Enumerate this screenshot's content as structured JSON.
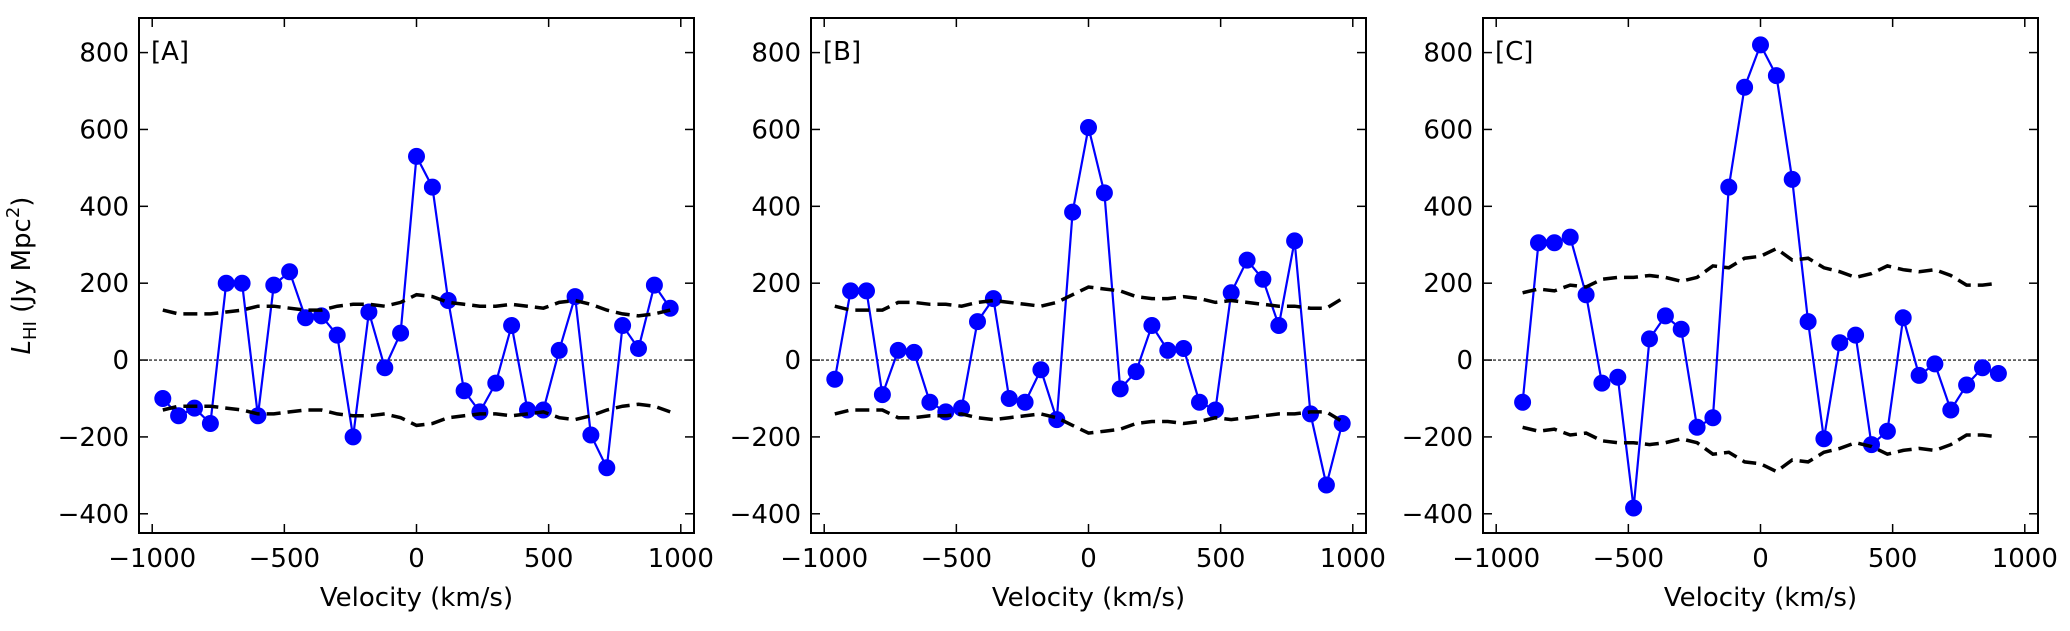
{
  "chart_data": [
    {
      "type": "line",
      "panel_label": "[A]",
      "xlabel": "Velocity (km/s)",
      "ylabel": "L_HI (Jy Mpc^2)",
      "ylabel_parts": {
        "base": "L",
        "sub": "HI",
        "unit": "(Jy Mpc",
        "sup": "2",
        "end": ")"
      },
      "xlim": [
        -1050,
        1050
      ],
      "ylim": [
        -450,
        890
      ],
      "xticks": [
        -1000,
        -500,
        0,
        500,
        1000
      ],
      "xtick_labels": [
        "−1000",
        "−500",
        "0",
        "500",
        "1000"
      ],
      "yticks": [
        -400,
        -200,
        0,
        200,
        400,
        600,
        800
      ],
      "ytick_labels": [
        "−400",
        "−200",
        "0",
        "200",
        "400",
        "600",
        "800"
      ],
      "series": [
        {
          "name": "stacked spectrum",
          "x": [
            -960,
            -900,
            -840,
            -780,
            -720,
            -660,
            -600,
            -540,
            -480,
            -420,
            -360,
            -300,
            -240,
            -180,
            -120,
            -60,
            0,
            60,
            120,
            180,
            240,
            300,
            360,
            420,
            480,
            540,
            600,
            660,
            720,
            780,
            840,
            900,
            960
          ],
          "y": [
            -100,
            -145,
            -125,
            -165,
            200,
            200,
            -145,
            195,
            230,
            110,
            115,
            65,
            -200,
            125,
            -20,
            70,
            530,
            450,
            155,
            -80,
            -135,
            -60,
            90,
            -130,
            -130,
            25,
            165,
            -195,
            -280,
            90,
            30,
            195,
            135
          ]
        },
        {
          "name": "noise upper",
          "x": [
            -960,
            -900,
            -840,
            -780,
            -720,
            -660,
            -600,
            -540,
            -480,
            -420,
            -360,
            -300,
            -240,
            -180,
            -120,
            -60,
            0,
            60,
            120,
            180,
            240,
            300,
            360,
            420,
            480,
            540,
            600,
            660,
            720,
            780,
            840,
            900,
            960
          ],
          "y": [
            130,
            120,
            120,
            120,
            125,
            130,
            140,
            140,
            135,
            130,
            130,
            140,
            145,
            145,
            140,
            150,
            170,
            165,
            150,
            145,
            140,
            140,
            145,
            140,
            135,
            150,
            155,
            145,
            130,
            120,
            115,
            120,
            130
          ]
        },
        {
          "name": "noise lower",
          "x": [
            -960,
            -900,
            -840,
            -780,
            -720,
            -660,
            -600,
            -540,
            -480,
            -420,
            -360,
            -300,
            -240,
            -180,
            -120,
            -60,
            0,
            60,
            120,
            180,
            240,
            300,
            360,
            420,
            480,
            540,
            600,
            660,
            720,
            780,
            840,
            900,
            960
          ],
          "y": [
            -130,
            -120,
            -120,
            -120,
            -125,
            -130,
            -140,
            -140,
            -135,
            -130,
            -130,
            -140,
            -145,
            -145,
            -140,
            -150,
            -170,
            -165,
            -150,
            -145,
            -140,
            -140,
            -145,
            -140,
            -135,
            -150,
            -155,
            -145,
            -130,
            -120,
            -115,
            -120,
            -135
          ]
        }
      ]
    },
    {
      "type": "line",
      "panel_label": "[B]",
      "xlabel": "Velocity (km/s)",
      "ylabel": "",
      "xlim": [
        -1050,
        1050
      ],
      "ylim": [
        -450,
        890
      ],
      "xticks": [
        -1000,
        -500,
        0,
        500,
        1000
      ],
      "xtick_labels": [
        "−1000",
        "−500",
        "0",
        "500",
        "1000"
      ],
      "yticks": [
        -400,
        -200,
        0,
        200,
        400,
        600,
        800
      ],
      "ytick_labels": [
        "−400",
        "−200",
        "0",
        "200",
        "400",
        "600",
        "800"
      ],
      "series": [
        {
          "name": "stacked spectrum",
          "x": [
            -960,
            -900,
            -840,
            -780,
            -720,
            -660,
            -600,
            -540,
            -480,
            -420,
            -360,
            -300,
            -240,
            -180,
            -120,
            -60,
            0,
            60,
            120,
            180,
            240,
            300,
            360,
            420,
            480,
            540,
            600,
            660,
            720,
            780,
            840,
            900,
            960
          ],
          "y": [
            -50,
            180,
            180,
            -90,
            25,
            20,
            -110,
            -135,
            -125,
            100,
            160,
            -100,
            -110,
            -25,
            -155,
            385,
            605,
            435,
            -75,
            -30,
            90,
            25,
            30,
            -110,
            -130,
            175,
            260,
            210,
            90,
            310,
            -140,
            -325,
            -165
          ]
        },
        {
          "name": "noise upper",
          "x": [
            -960,
            -900,
            -840,
            -780,
            -720,
            -660,
            -600,
            -540,
            -480,
            -420,
            -360,
            -300,
            -240,
            -180,
            -120,
            -60,
            0,
            60,
            120,
            180,
            240,
            300,
            360,
            420,
            480,
            540,
            600,
            660,
            720,
            780,
            840,
            900,
            960
          ],
          "y": [
            140,
            130,
            130,
            130,
            150,
            150,
            145,
            145,
            140,
            150,
            155,
            150,
            145,
            140,
            150,
            170,
            190,
            185,
            180,
            165,
            160,
            160,
            165,
            160,
            150,
            155,
            150,
            145,
            140,
            140,
            135,
            135,
            160
          ]
        },
        {
          "name": "noise lower",
          "x": [
            -960,
            -900,
            -840,
            -780,
            -720,
            -660,
            -600,
            -540,
            -480,
            -420,
            -360,
            -300,
            -240,
            -180,
            -120,
            -60,
            0,
            60,
            120,
            180,
            240,
            300,
            360,
            420,
            480,
            540,
            600,
            660,
            720,
            780,
            840,
            900,
            960
          ],
          "y": [
            -140,
            -130,
            -130,
            -130,
            -150,
            -150,
            -145,
            -145,
            -140,
            -150,
            -155,
            -150,
            -145,
            -140,
            -150,
            -170,
            -190,
            -185,
            -180,
            -165,
            -160,
            -160,
            -165,
            -160,
            -150,
            -155,
            -150,
            -145,
            -140,
            -140,
            -135,
            -135,
            -160
          ]
        }
      ]
    },
    {
      "type": "line",
      "panel_label": "[C]",
      "xlabel": "Velocity (km/s)",
      "ylabel": "",
      "xlim": [
        -1050,
        1050
      ],
      "ylim": [
        -450,
        890
      ],
      "xticks": [
        -1000,
        -500,
        0,
        500,
        1000
      ],
      "xtick_labels": [
        "−1000",
        "−500",
        "0",
        "500",
        "1000"
      ],
      "yticks": [
        -400,
        -200,
        0,
        200,
        400,
        600,
        800
      ],
      "ytick_labels": [
        "−400",
        "−200",
        "0",
        "200",
        "400",
        "600",
        "800"
      ],
      "series": [
        {
          "name": "stacked spectrum",
          "x": [
            -900,
            -840,
            -780,
            -720,
            -660,
            -600,
            -540,
            -480,
            -420,
            -360,
            -300,
            -240,
            -180,
            -120,
            -60,
            0,
            60,
            120,
            180,
            240,
            300,
            360,
            420,
            480,
            540,
            600,
            660,
            720,
            780,
            840,
            900
          ],
          "y": [
            -110,
            305,
            305,
            320,
            170,
            -60,
            -45,
            -385,
            55,
            115,
            80,
            -175,
            -150,
            450,
            710,
            820,
            740,
            470,
            100,
            -205,
            45,
            65,
            -220,
            -185,
            110,
            -40,
            -10,
            -130,
            -65,
            -20,
            -35
          ]
        },
        {
          "name": "noise upper",
          "x": [
            -900,
            -840,
            -780,
            -720,
            -660,
            -600,
            -540,
            -480,
            -420,
            -360,
            -300,
            -240,
            -180,
            -120,
            -60,
            0,
            60,
            120,
            180,
            240,
            300,
            360,
            420,
            480,
            540,
            600,
            660,
            720,
            780,
            840,
            900
          ],
          "y": [
            175,
            185,
            180,
            195,
            190,
            210,
            215,
            215,
            220,
            215,
            205,
            215,
            245,
            240,
            265,
            270,
            290,
            260,
            265,
            240,
            230,
            215,
            225,
            245,
            235,
            230,
            235,
            220,
            195,
            195,
            200
          ]
        },
        {
          "name": "noise lower",
          "x": [
            -900,
            -840,
            -780,
            -720,
            -660,
            -600,
            -540,
            -480,
            -420,
            -360,
            -300,
            -240,
            -180,
            -120,
            -60,
            0,
            60,
            120,
            180,
            240,
            300,
            360,
            420,
            480,
            540,
            600,
            660,
            720,
            780,
            840,
            900
          ],
          "y": [
            -175,
            -185,
            -180,
            -195,
            -190,
            -210,
            -215,
            -215,
            -220,
            -215,
            -205,
            -215,
            -245,
            -240,
            -265,
            -270,
            -290,
            -260,
            -265,
            -240,
            -230,
            -215,
            -225,
            -245,
            -235,
            -230,
            -235,
            -220,
            -195,
            -195,
            -200
          ]
        }
      ]
    }
  ]
}
